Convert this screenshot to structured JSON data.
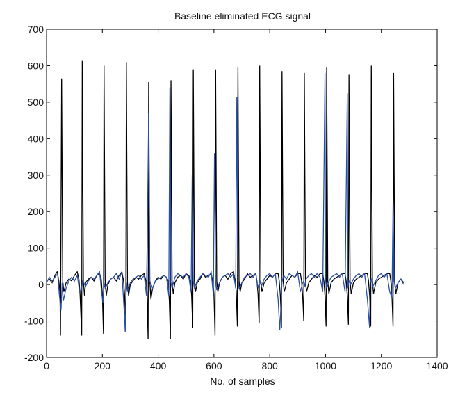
{
  "chart_data": {
    "type": "line",
    "title": "Baseline eliminated ECG signal",
    "xlabel": "No. of samples",
    "ylabel": "",
    "xlim": [
      0,
      1400
    ],
    "ylim": [
      -200,
      700
    ],
    "xticks": [
      0,
      200,
      400,
      600,
      800,
      1000,
      1200,
      1400
    ],
    "yticks": [
      -200,
      -100,
      0,
      100,
      200,
      300,
      400,
      500,
      600,
      700
    ],
    "grid": false,
    "legend": "none",
    "colors": {
      "primary": "#000000",
      "secondary": "#2a4fa8"
    },
    "series": [
      {
        "color": "#000000",
        "x": [
          0,
          10,
          20,
          30,
          38,
          44,
          48,
          50,
          54,
          58,
          62,
          70,
          80,
          90,
          100,
          110,
          116,
          120,
          126,
          128,
          132,
          136,
          140,
          150,
          160,
          170,
          180,
          190,
          196,
          200,
          204,
          206,
          210,
          214,
          220,
          230,
          240,
          250,
          260,
          270,
          276,
          280,
          284,
          286,
          290,
          294,
          300,
          310,
          320,
          330,
          340,
          350,
          356,
          360,
          364,
          366,
          370,
          374,
          380,
          390,
          400,
          410,
          420,
          430,
          436,
          440,
          444,
          446,
          450,
          454,
          460,
          470,
          480,
          490,
          500,
          510,
          516,
          520,
          524,
          526,
          530,
          534,
          540,
          550,
          560,
          570,
          580,
          590,
          596,
          600,
          604,
          606,
          610,
          614,
          620,
          630,
          640,
          650,
          660,
          670,
          676,
          680,
          684,
          686,
          690,
          694,
          700,
          710,
          720,
          730,
          740,
          750,
          754,
          758,
          762,
          764,
          768,
          772,
          780,
          790,
          800,
          810,
          820,
          830,
          834,
          838,
          842,
          844,
          848,
          852,
          860,
          870,
          880,
          890,
          900,
          910,
          914,
          918,
          922,
          924,
          928,
          932,
          940,
          950,
          960,
          970,
          980,
          990,
          994,
          998,
          1002,
          1004,
          1008,
          1012,
          1020,
          1030,
          1040,
          1050,
          1060,
          1070,
          1074,
          1078,
          1082,
          1084,
          1088,
          1092,
          1100,
          1110,
          1120,
          1130,
          1140,
          1150,
          1154,
          1158,
          1162,
          1164,
          1168,
          1172,
          1180,
          1190,
          1200,
          1210,
          1220,
          1230,
          1234,
          1238,
          1242,
          1244,
          1248,
          1252,
          1260,
          1270,
          1280
        ],
        "y": [
          10,
          15,
          5,
          25,
          35,
          10,
          -20,
          -140,
          565,
          10,
          -20,
          5,
          15,
          10,
          25,
          35,
          15,
          -25,
          -140,
          615,
          10,
          -30,
          5,
          15,
          20,
          10,
          25,
          30,
          15,
          -25,
          -135,
          600,
          10,
          -30,
          0,
          15,
          20,
          10,
          25,
          35,
          10,
          -30,
          -125,
          610,
          5,
          -30,
          0,
          10,
          20,
          15,
          25,
          30,
          10,
          -20,
          -150,
          555,
          10,
          -40,
          -10,
          10,
          20,
          15,
          25,
          20,
          10,
          -45,
          -150,
          560,
          10,
          -25,
          5,
          20,
          25,
          15,
          30,
          25,
          10,
          -30,
          -120,
          590,
          10,
          -20,
          5,
          15,
          30,
          20,
          25,
          30,
          10,
          -25,
          -140,
          590,
          10,
          -20,
          5,
          20,
          25,
          15,
          30,
          35,
          10,
          -20,
          -115,
          595,
          10,
          -20,
          5,
          15,
          30,
          20,
          25,
          30,
          10,
          -25,
          -105,
          600,
          10,
          -20,
          5,
          15,
          25,
          20,
          30,
          30,
          10,
          -30,
          -120,
          585,
          10,
          -20,
          5,
          15,
          25,
          20,
          30,
          30,
          10,
          -30,
          -100,
          580,
          10,
          -20,
          5,
          15,
          25,
          20,
          30,
          30,
          10,
          -30,
          -115,
          595,
          10,
          -25,
          5,
          15,
          20,
          25,
          30,
          30,
          10,
          -30,
          -110,
          575,
          10,
          -25,
          5,
          15,
          20,
          25,
          30,
          30,
          10,
          -30,
          -115,
          600,
          10,
          -25,
          5,
          15,
          20,
          25,
          30,
          30,
          10,
          -30,
          -115,
          580,
          10,
          -25,
          5,
          15,
          5
        ]
      },
      {
        "color": "#2a4fa8",
        "x": [
          0,
          10,
          20,
          30,
          40,
          46,
          52,
          56,
          60,
          70,
          80,
          90,
          100,
          110,
          118,
          124,
          130,
          140,
          150,
          160,
          170,
          180,
          190,
          198,
          202,
          206,
          210,
          220,
          230,
          240,
          250,
          260,
          270,
          278,
          282,
          286,
          290,
          300,
          310,
          320,
          330,
          340,
          350,
          358,
          362,
          366,
          370,
          380,
          390,
          400,
          410,
          420,
          430,
          438,
          442,
          446,
          450,
          460,
          470,
          480,
          490,
          500,
          510,
          518,
          522,
          526,
          530,
          540,
          550,
          560,
          570,
          580,
          590,
          598,
          602,
          606,
          610,
          620,
          630,
          640,
          650,
          660,
          670,
          678,
          682,
          686,
          690,
          700,
          710,
          720,
          730,
          740,
          750,
          758,
          764,
          770,
          780,
          790,
          800,
          810,
          820,
          830,
          836,
          840,
          844,
          850,
          860,
          870,
          880,
          890,
          900,
          910,
          918,
          922,
          926,
          930,
          940,
          950,
          960,
          970,
          980,
          990,
          998,
          1000,
          1004,
          1010,
          1020,
          1030,
          1040,
          1050,
          1060,
          1070,
          1078,
          1080,
          1084,
          1090,
          1100,
          1110,
          1120,
          1130,
          1140,
          1150,
          1158,
          1160,
          1164,
          1170,
          1180,
          1190,
          1200,
          1210,
          1220,
          1230,
          1238,
          1242,
          1246,
          1250,
          1260,
          1270,
          1280
        ],
        "y": [
          5,
          20,
          10,
          20,
          30,
          -30,
          -70,
          5,
          -45,
          -10,
          10,
          20,
          10,
          25,
          -15,
          -20,
          10,
          -5,
          10,
          20,
          15,
          25,
          35,
          -25,
          -50,
          5,
          -10,
          5,
          15,
          20,
          30,
          15,
          35,
          -70,
          -130,
          5,
          -20,
          5,
          15,
          20,
          25,
          15,
          25,
          -30,
          185,
          470,
          10,
          -10,
          10,
          15,
          20,
          25,
          20,
          -30,
          540,
          5,
          -10,
          20,
          30,
          25,
          20,
          30,
          20,
          -20,
          300,
          10,
          -10,
          10,
          20,
          30,
          25,
          20,
          35,
          -30,
          360,
          10,
          -15,
          5,
          20,
          25,
          30,
          20,
          30,
          -10,
          515,
          10,
          -10,
          5,
          20,
          25,
          30,
          20,
          30,
          -10,
          10,
          -5,
          15,
          25,
          30,
          20,
          30,
          -40,
          -125,
          -60,
          10,
          25,
          15,
          30,
          25,
          20,
          35,
          -20,
          5,
          10,
          -5,
          15,
          25,
          30,
          20,
          30,
          20,
          -20,
          580,
          10,
          -10,
          5,
          20,
          25,
          30,
          20,
          30,
          -20,
          525,
          -10,
          10,
          0,
          15,
          25,
          30,
          20,
          30,
          -40,
          -120,
          5,
          15,
          -5,
          10,
          25,
          30,
          20,
          30,
          -20,
          -35,
          220,
          10,
          -10,
          5,
          15,
          0
        ]
      }
    ]
  }
}
